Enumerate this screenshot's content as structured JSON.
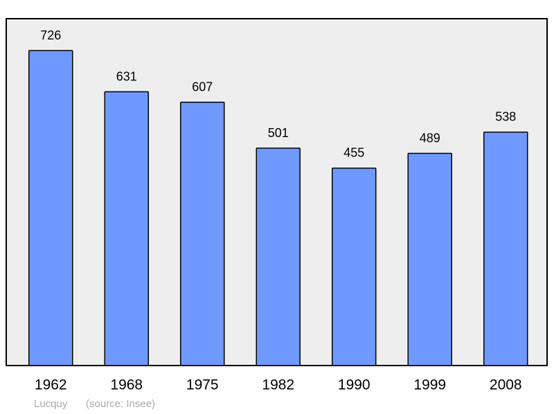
{
  "chart_data": {
    "type": "bar",
    "categories": [
      "1962",
      "1968",
      "1975",
      "1982",
      "1990",
      "1999",
      "2008"
    ],
    "values": [
      726,
      631,
      607,
      501,
      455,
      489,
      538
    ],
    "color": "#7099ff",
    "place": "Lucquy",
    "source": "(source: Insee)"
  }
}
